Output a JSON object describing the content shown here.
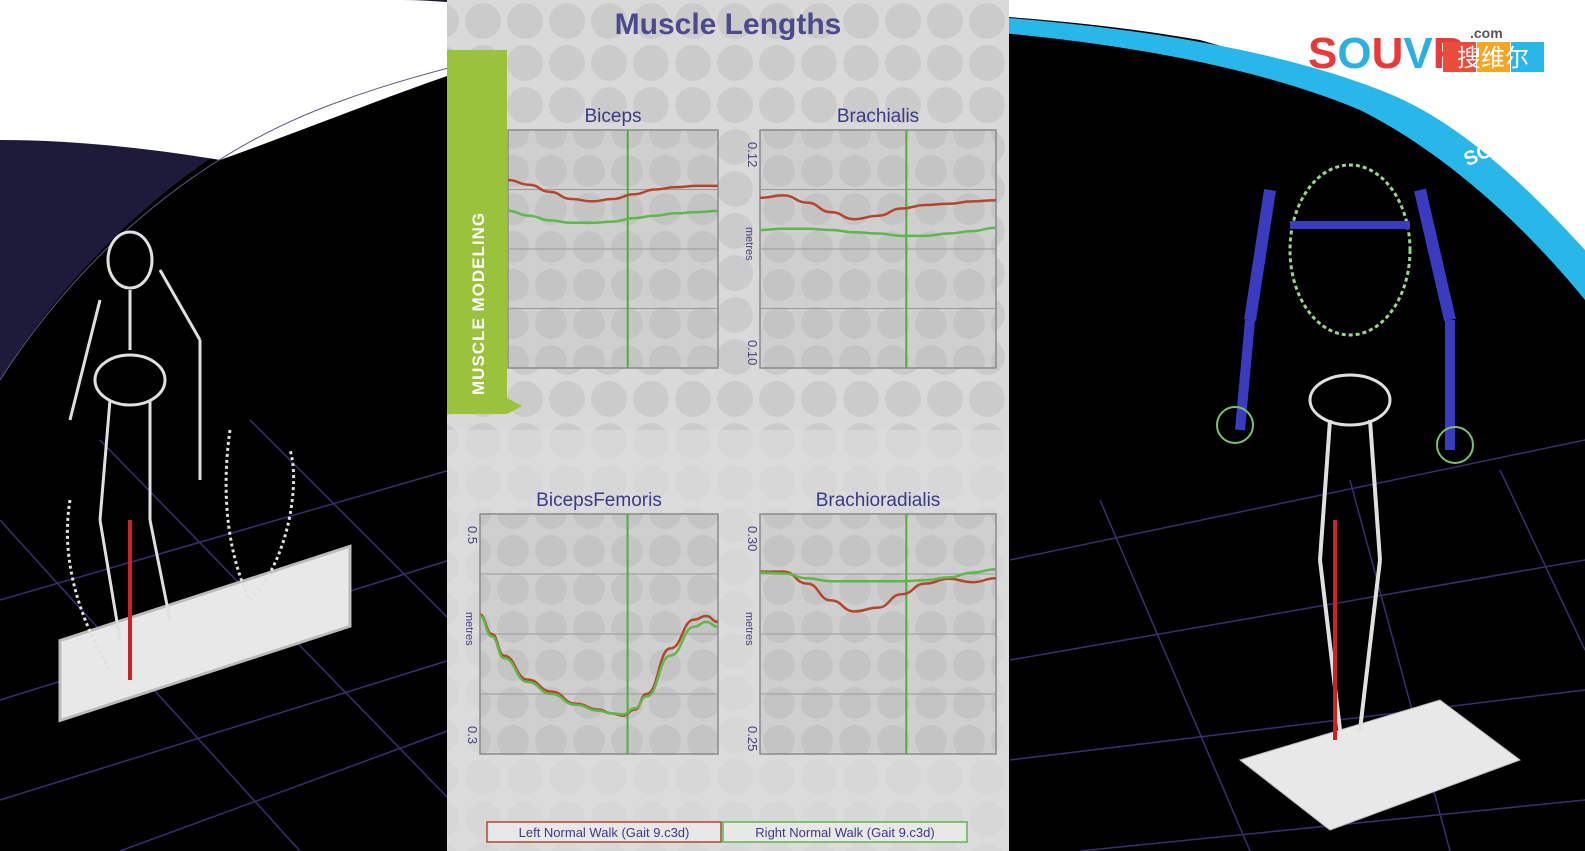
{
  "panel": {
    "title": "Muscle Lengths",
    "side_tab": "MUSCLE MODELING"
  },
  "brand": {
    "logo_text": "SOUVR",
    "logo_dotcom": ".com",
    "logo_cn": "搜维尔",
    "ribbon_text": "SOUVR",
    "colors": {
      "s": "#e83a3a",
      "o": "#2cb0e0",
      "u": "#e83a3a",
      "v": "#2cb0e0",
      "r": "#e83a3a",
      "ribbon": "#29b6e8",
      "cn_bg": [
        "#e94b3c",
        "#f5a623",
        "#29b6e8"
      ]
    }
  },
  "colors": {
    "left_series": "#b5452a",
    "right_series": "#5db84a",
    "marker_line": "#4caf3a",
    "chart_bg": "#cfcfcf",
    "panel_bg": "#dcdcdc",
    "tab_green": "#9bc23c",
    "dark_wave": "#1e1b3a"
  },
  "legend": {
    "left": "Left Normal Walk (Gait 9.c3d)",
    "right": "Right Normal Walk (Gait 9.c3d)"
  },
  "chart_data": [
    {
      "type": "line",
      "title": "Biceps",
      "ylabel": "",
      "ylim": [
        0,
        1
      ],
      "yticks": [],
      "marker_x": 0.57,
      "series": [
        {
          "x": [
            0,
            0.1,
            0.2,
            0.3,
            0.4,
            0.5,
            0.6,
            0.7,
            0.8,
            0.9,
            1.0
          ],
          "values": [
            0.79,
            0.77,
            0.74,
            0.71,
            0.7,
            0.71,
            0.73,
            0.75,
            0.76,
            0.765,
            0.765
          ]
        },
        {
          "x": [
            0,
            0.1,
            0.2,
            0.3,
            0.4,
            0.5,
            0.6,
            0.7,
            0.8,
            0.9,
            1.0
          ],
          "values": [
            0.66,
            0.64,
            0.62,
            0.61,
            0.61,
            0.615,
            0.63,
            0.64,
            0.65,
            0.655,
            0.66
          ]
        }
      ]
    },
    {
      "type": "line",
      "title": "Brachialis",
      "ylabel": "metres",
      "ylim": [
        0.1,
        0.12
      ],
      "yticks": [
        "0.12",
        "0.10"
      ],
      "marker_x": 0.62,
      "series": [
        {
          "x": [
            0,
            0.1,
            0.2,
            0.3,
            0.4,
            0.5,
            0.6,
            0.7,
            0.8,
            0.9,
            1.0
          ],
          "values": [
            0.1143,
            0.1145,
            0.1139,
            0.1131,
            0.1125,
            0.1128,
            0.1134,
            0.1137,
            0.1138,
            0.114,
            0.1141
          ]
        },
        {
          "x": [
            0,
            0.1,
            0.2,
            0.3,
            0.4,
            0.5,
            0.6,
            0.7,
            0.8,
            0.9,
            1.0
          ],
          "values": [
            0.1116,
            0.1117,
            0.1117,
            0.1116,
            0.1114,
            0.1113,
            0.1111,
            0.1111,
            0.1113,
            0.1115,
            0.1118
          ]
        }
      ]
    },
    {
      "type": "line",
      "title": "BicepsFemoris",
      "ylabel": "metres",
      "ylim": [
        0.3,
        0.5
      ],
      "yticks": [
        "0.5",
        "0.3"
      ],
      "marker_x": 0.62,
      "series": [
        {
          "x": [
            0,
            0.05,
            0.1,
            0.2,
            0.3,
            0.4,
            0.5,
            0.55,
            0.6,
            0.65,
            0.7,
            0.8,
            0.9,
            0.95,
            1.0
          ],
          "values": [
            0.416,
            0.4,
            0.382,
            0.362,
            0.352,
            0.342,
            0.337,
            0.334,
            0.332,
            0.337,
            0.35,
            0.388,
            0.412,
            0.415,
            0.41
          ]
        },
        {
          "x": [
            0,
            0.05,
            0.1,
            0.2,
            0.3,
            0.4,
            0.5,
            0.55,
            0.6,
            0.65,
            0.7,
            0.8,
            0.9,
            0.95,
            1.0
          ],
          "values": [
            0.415,
            0.398,
            0.38,
            0.36,
            0.35,
            0.341,
            0.336,
            0.334,
            0.333,
            0.338,
            0.348,
            0.382,
            0.406,
            0.41,
            0.406
          ]
        }
      ]
    },
    {
      "type": "line",
      "title": "Brachioradialis",
      "ylabel": "metres",
      "ylim": [
        0.25,
        0.3
      ],
      "yticks": [
        "0.30",
        "0.25"
      ],
      "marker_x": 0.62,
      "series": [
        {
          "x": [
            0,
            0.1,
            0.2,
            0.3,
            0.4,
            0.5,
            0.6,
            0.7,
            0.8,
            0.9,
            1.0
          ],
          "values": [
            0.288,
            0.288,
            0.2855,
            0.282,
            0.2797,
            0.2805,
            0.2833,
            0.2855,
            0.2865,
            0.2858,
            0.2866
          ]
        },
        {
          "x": [
            0,
            0.1,
            0.2,
            0.3,
            0.4,
            0.5,
            0.6,
            0.7,
            0.8,
            0.9,
            1.0
          ],
          "values": [
            0.2878,
            0.2876,
            0.2866,
            0.286,
            0.286,
            0.286,
            0.286,
            0.2862,
            0.2868,
            0.2878,
            0.2885
          ]
        }
      ]
    }
  ]
}
